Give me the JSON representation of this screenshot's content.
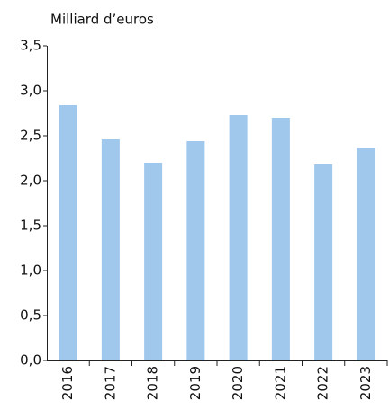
{
  "chart_data": {
    "type": "bar",
    "y_label": "Milliard d’euros",
    "categories": [
      "2016",
      "2017",
      "2018",
      "2019",
      "2020",
      "2021",
      "2022",
      "2023"
    ],
    "values": [
      2.84,
      2.46,
      2.2,
      2.44,
      2.73,
      2.7,
      2.18,
      2.36
    ],
    "color": "#a0c8ec",
    "ylim": [
      0,
      3.5
    ],
    "yticks": [
      {
        "value": 0,
        "label": "0,0"
      },
      {
        "value": 0.5,
        "label": "0,5"
      },
      {
        "value": 1,
        "label": "1,0"
      },
      {
        "value": 1.5,
        "label": "1,5"
      },
      {
        "value": 2,
        "label": "2,0"
      },
      {
        "value": 2.5,
        "label": "2,5"
      },
      {
        "value": 3,
        "label": "3,0"
      },
      {
        "value": 3.5,
        "label": "3,5"
      }
    ],
    "grid": false
  }
}
